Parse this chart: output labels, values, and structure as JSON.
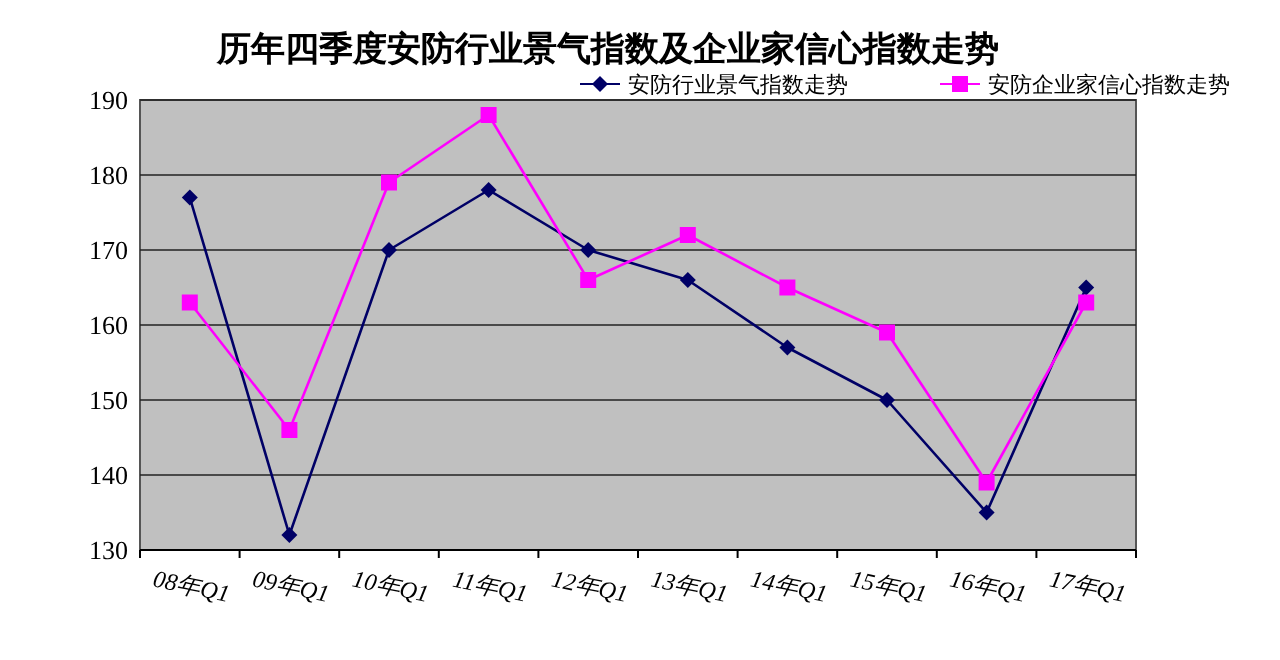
{
  "chart_data": {
    "type": "line",
    "title": "历年四季度安防行业景气指数及企业家信心指数走势",
    "categories": [
      "08年Q1",
      "09年Q1",
      "10年Q1",
      "11年Q1",
      "12年Q1",
      "13年Q1",
      "14年Q1",
      "15年Q1",
      "16年Q1",
      "17年Q1"
    ],
    "series": [
      {
        "name": "安防行业景气指数走势",
        "color": "#000066",
        "marker": "diamond",
        "values": [
          177,
          132,
          170,
          178,
          170,
          166,
          157,
          150,
          135,
          165
        ]
      },
      {
        "name": "安防企业家信心指数走势",
        "color": "#ff00ff",
        "marker": "square",
        "values": [
          163,
          146,
          179,
          188,
          166,
          172,
          165,
          159,
          139,
          163
        ]
      }
    ],
    "ylim": [
      130,
      190
    ],
    "yticks": [
      130,
      140,
      150,
      160,
      170,
      180,
      190
    ],
    "grid": "y",
    "legend": "top right"
  }
}
